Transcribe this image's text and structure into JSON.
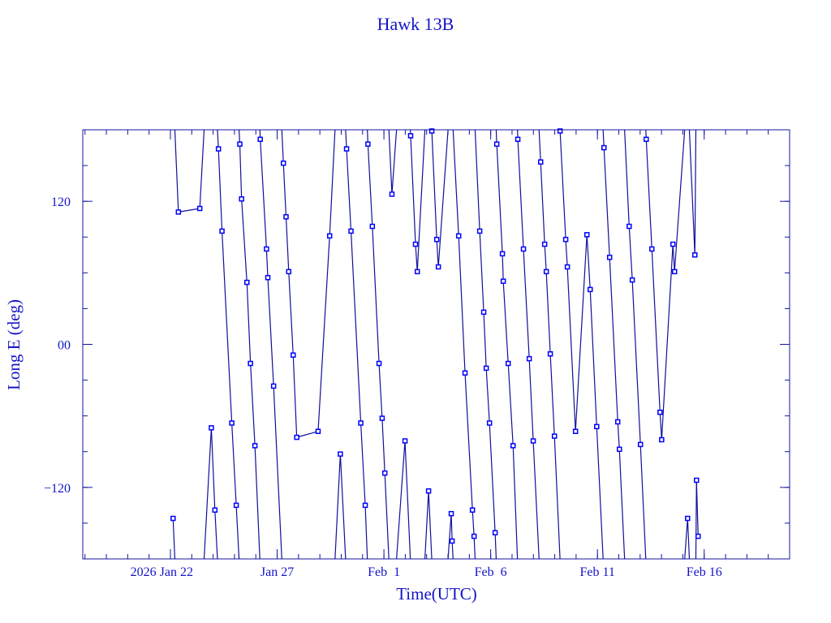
{
  "chart_data": {
    "type": "line",
    "title": "Hawk 13B",
    "xlabel": "Time(UTC)",
    "ylabel": "Long E (deg)",
    "xlim": [
      "2026-01-17T21:30",
      "2026-02-20T00:00"
    ],
    "ylim": [
      -180,
      180
    ],
    "x_major_ticks": [
      {
        "t": "2026-01-22T00:00",
        "label": "2026 Jan 22"
      },
      {
        "t": "2026-01-27T00:00",
        "label": "Jan 27"
      },
      {
        "t": "2026-02-01T00:00",
        "label": "Feb  1"
      },
      {
        "t": "2026-02-06T00:00",
        "label": "Feb  6"
      },
      {
        "t": "2026-02-11T00:00",
        "label": "Feb 11"
      },
      {
        "t": "2026-02-16T00:00",
        "label": "Feb 16"
      }
    ],
    "y_major_ticks": [
      {
        "v": 120,
        "label": "120"
      },
      {
        "v": 0,
        "label": "00"
      },
      {
        "v": -120,
        "label": "−120"
      }
    ],
    "y_minor_step": 30,
    "x_minor_step_days": 1,
    "grid": false,
    "longitude_wraps": true,
    "colors": {
      "axis": "#1414a0",
      "text": "#1414c8",
      "line": "#10109a",
      "marker": "#0000ff"
    },
    "series": [
      {
        "points": [
          [
            "2026-01-22T03:00",
            -146
          ],
          [
            "2026-01-22T09:00",
            111
          ],
          [
            "2026-01-23T09:00",
            114
          ],
          [
            "2026-01-23T22:00",
            -70
          ],
          [
            "2026-01-24T02:00",
            -139
          ],
          [
            "2026-01-24T06:00",
            164
          ],
          [
            "2026-01-24T10:00",
            95
          ],
          [
            "2026-01-24T21:00",
            -66
          ],
          [
            "2026-01-25T02:00",
            -135
          ],
          [
            "2026-01-25T06:00",
            168
          ],
          [
            "2026-01-25T08:00",
            122
          ],
          [
            "2026-01-25T14:00",
            52
          ],
          [
            "2026-01-25T18:00",
            -16
          ],
          [
            "2026-01-25T23:00",
            -85
          ],
          [
            "2026-01-26T05:00",
            172
          ],
          [
            "2026-01-26T12:00",
            80
          ],
          [
            "2026-01-26T13:30",
            56
          ],
          [
            "2026-01-26T20:00",
            -35
          ],
          [
            "2026-01-27T07:00",
            152
          ],
          [
            "2026-01-27T10:00",
            107
          ],
          [
            "2026-01-27T13:00",
            61
          ],
          [
            "2026-01-27T18:00",
            -9
          ],
          [
            "2026-01-27T22:00",
            -78
          ],
          [
            "2026-01-28T22:00",
            -73
          ],
          [
            "2026-01-29T11:00",
            91
          ],
          [
            "2026-01-29T23:00",
            -92
          ],
          [
            "2026-01-30T06:00",
            164
          ],
          [
            "2026-01-30T11:00",
            95
          ],
          [
            "2026-01-30T22:00",
            -66
          ],
          [
            "2026-01-31T03:00",
            -135
          ],
          [
            "2026-01-31T06:00",
            168
          ],
          [
            "2026-01-31T11:00",
            99
          ],
          [
            "2026-01-31T18:30",
            -16
          ],
          [
            "2026-01-31T22:00",
            -62
          ],
          [
            "2026-02-01T01:00",
            -108
          ],
          [
            "2026-02-01T09:00",
            126
          ],
          [
            "2026-02-01T23:40",
            -81
          ],
          [
            "2026-02-02T06:00",
            175
          ],
          [
            "2026-02-02T11:30",
            84
          ],
          [
            "2026-02-02T13:30",
            61
          ],
          [
            "2026-02-03T02:10",
            -123
          ],
          [
            "2026-02-03T05:50",
            179
          ],
          [
            "2026-02-03T11:20",
            88
          ],
          [
            "2026-02-03T13:10",
            65
          ],
          [
            "2026-02-04T03:40",
            -142
          ],
          [
            "2026-02-04T04:40",
            -165
          ],
          [
            "2026-02-04T12:00",
            91
          ],
          [
            "2026-02-04T19:10",
            -24
          ],
          [
            "2026-02-05T03:30",
            -139
          ],
          [
            "2026-02-05T05:20",
            -161
          ],
          [
            "2026-02-05T11:40",
            95
          ],
          [
            "2026-02-05T16:10",
            27
          ],
          [
            "2026-02-05T19:00",
            -20
          ],
          [
            "2026-02-05T22:40",
            -66
          ],
          [
            "2026-02-06T05:00",
            -158
          ],
          [
            "2026-02-06T06:50",
            168
          ],
          [
            "2026-02-06T13:10",
            76
          ],
          [
            "2026-02-06T14:10",
            53
          ],
          [
            "2026-02-06T19:40",
            -16
          ],
          [
            "2026-02-07T01:10",
            -85
          ],
          [
            "2026-02-07T06:30",
            172
          ],
          [
            "2026-02-07T12:50",
            80
          ],
          [
            "2026-02-07T19:20",
            -12
          ],
          [
            "2026-02-07T23:50",
            -81
          ],
          [
            "2026-02-08T08:10",
            153
          ],
          [
            "2026-02-08T12:40",
            84
          ],
          [
            "2026-02-08T14:30",
            61
          ],
          [
            "2026-02-08T19:00",
            -8
          ],
          [
            "2026-02-08T23:40",
            -77
          ],
          [
            "2026-02-09T06:00",
            179
          ],
          [
            "2026-02-09T12:20",
            88
          ],
          [
            "2026-02-09T14:10",
            65
          ],
          [
            "2026-02-09T23:20",
            -73
          ],
          [
            "2026-02-10T12:10",
            92
          ],
          [
            "2026-02-10T15:50",
            46
          ],
          [
            "2026-02-10T23:10",
            -69
          ],
          [
            "2026-02-11T07:20",
            165
          ],
          [
            "2026-02-11T13:40",
            73
          ],
          [
            "2026-02-11T22:50",
            -65
          ],
          [
            "2026-02-12T00:40",
            -88
          ],
          [
            "2026-02-12T11:40",
            99
          ],
          [
            "2026-02-12T15:10",
            54
          ],
          [
            "2026-02-13T00:20",
            -84
          ],
          [
            "2026-02-13T06:50",
            172
          ],
          [
            "2026-02-13T13:10",
            80
          ],
          [
            "2026-02-13T22:20",
            -57
          ],
          [
            "2026-02-14T00:10",
            -80
          ],
          [
            "2026-02-14T12:50",
            84
          ],
          [
            "2026-02-14T14:40",
            61
          ],
          [
            "2026-02-15T05:20",
            -146
          ],
          [
            "2026-02-15T13:30",
            75
          ],
          [
            "2026-02-15T15:20",
            -114
          ],
          [
            "2026-02-15T17:10",
            -161
          ]
        ]
      }
    ]
  }
}
